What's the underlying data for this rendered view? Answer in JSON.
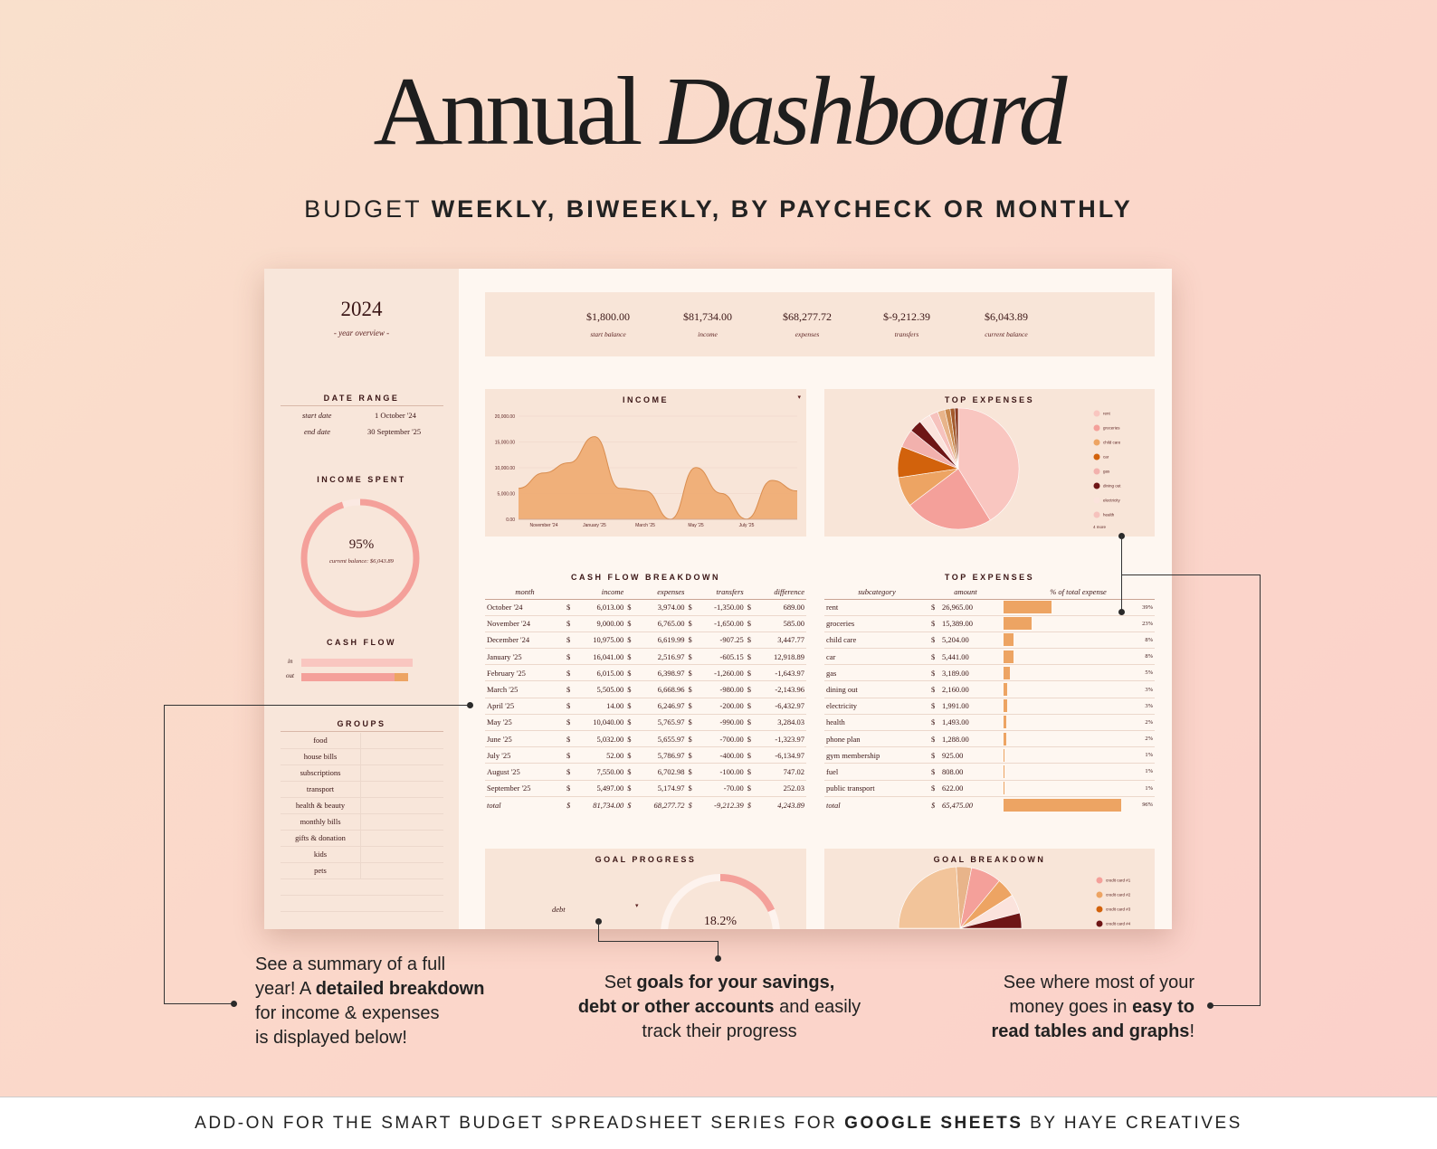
{
  "hero": {
    "title_regular": "Annual",
    "title_italic": "Dashboard"
  },
  "subtitle": {
    "normal": "BUDGET ",
    "bold": "WEEKLY, BIWEEKLY, BY PAYCHECK OR MONTHLY"
  },
  "footer": {
    "pre": "ADD-ON FOR THE SMART BUDGET SPREADSHEET SERIES FOR ",
    "bold": "GOOGLE SHEETS",
    "post": " BY HAYE CREATIVES"
  },
  "sidebar": {
    "year": "2024",
    "year_sub": "- year overview -",
    "date_range_title": "DATE RANGE",
    "start_label": "start date",
    "start_value": "1 October '24",
    "end_label": "end date",
    "end_value": "30 September '25",
    "income_spent_title": "INCOME SPENT",
    "income_spent_pct": "95%",
    "income_spent_fraction": 0.95,
    "income_spent_note": "current balance: $6,043.89",
    "cash_flow_title": "CASH FLOW",
    "cf_in": "in",
    "cf_out": "out",
    "groups_title": "GROUPS",
    "groups": [
      "food",
      "house bills",
      "subscriptions",
      "transport",
      "health & beauty",
      "monthly bills",
      "gifts & donation",
      "kids",
      "pets"
    ]
  },
  "kpis": [
    {
      "value": "$1,800.00",
      "label": "start balance"
    },
    {
      "value": "$81,734.00",
      "label": "income"
    },
    {
      "value": "$68,277.72",
      "label": "expenses"
    },
    {
      "value": "$-9,212.39",
      "label": "transfers"
    },
    {
      "value": "$6,043.89",
      "label": "current balance"
    }
  ],
  "income_chart": {
    "title": "INCOME",
    "dropdown_icon": "caret-down-icon",
    "chart_data": {
      "type": "area",
      "x": [
        "October '24",
        "November '24",
        "December '24",
        "January '25",
        "February '25",
        "March '25",
        "April '25",
        "May '25",
        "June '25",
        "July '25",
        "August '25",
        "September '25"
      ],
      "values": [
        6013,
        9000,
        10975,
        16041,
        6015,
        5505,
        14,
        10040,
        5032,
        52,
        7550,
        5497
      ],
      "yticks": [
        "0.00",
        "5,000.00",
        "10,000.00",
        "15,000.00",
        "20,000.00"
      ],
      "xticks": [
        "November '24",
        "January '25",
        "March '25",
        "May '25",
        "July '25"
      ],
      "ylim": [
        0,
        20000
      ],
      "color": "#eeaa70"
    }
  },
  "top_expenses_pie": {
    "title": "TOP EXPENSES",
    "more": "4 more",
    "chart_data": {
      "type": "pie",
      "labels": [
        "rent",
        "groceries",
        "child care",
        "car",
        "gas",
        "dining out",
        "electricity",
        "health",
        "phone plan",
        "gym membership",
        "fuel",
        "public transport"
      ],
      "values": [
        26965,
        15389,
        5204,
        5441,
        3189,
        2160,
        1991,
        1493,
        1288,
        925,
        808,
        622
      ],
      "colors": [
        "#f9c6c0",
        "#f4a09a",
        "#eda463",
        "#d2620c",
        "#f2b1ad",
        "#6e1616",
        "#fbe3dc",
        "#f6c2bd",
        "#e8b48a",
        "#c9884d",
        "#a45a2c",
        "#8a3a22"
      ]
    }
  },
  "cash_flow": {
    "title": "CASH FLOW BREAKDOWN",
    "headers": [
      "month",
      "income",
      "expenses",
      "transfers",
      "difference"
    ],
    "rows": [
      [
        "October '24",
        "6,013.00",
        "3,974.00",
        "-1,350.00",
        "689.00"
      ],
      [
        "November '24",
        "9,000.00",
        "6,765.00",
        "-1,650.00",
        "585.00"
      ],
      [
        "December '24",
        "10,975.00",
        "6,619.99",
        "-907.25",
        "3,447.77"
      ],
      [
        "January '25",
        "16,041.00",
        "2,516.97",
        "-605.15",
        "12,918.89"
      ],
      [
        "February '25",
        "6,015.00",
        "6,398.97",
        "-1,260.00",
        "-1,643.97"
      ],
      [
        "March '25",
        "5,505.00",
        "6,668.96",
        "-980.00",
        "-2,143.96"
      ],
      [
        "April '25",
        "14.00",
        "6,246.97",
        "-200.00",
        "-6,432.97"
      ],
      [
        "May '25",
        "10,040.00",
        "5,765.97",
        "-990.00",
        "3,284.03"
      ],
      [
        "June '25",
        "5,032.00",
        "5,655.97",
        "-700.00",
        "-1,323.97"
      ],
      [
        "July '25",
        "52.00",
        "5,786.97",
        "-400.00",
        "-6,134.97"
      ],
      [
        "August '25",
        "7,550.00",
        "6,702.98",
        "-100.00",
        "747.02"
      ],
      [
        "September '25",
        "5,497.00",
        "5,174.97",
        "-70.00",
        "252.03"
      ]
    ],
    "total": [
      "total",
      "81,734.00",
      "68,277.72",
      "-9,212.39",
      "4,243.89"
    ],
    "currency": "$"
  },
  "top_expenses_table": {
    "title": "TOP EXPENSES",
    "headers": [
      "subcategory",
      "amount",
      "% of total expense"
    ],
    "rows": [
      [
        "rent",
        "26,965.00",
        "39%",
        0.39
      ],
      [
        "groceries",
        "15,389.00",
        "23%",
        0.23
      ],
      [
        "child care",
        "5,204.00",
        "8%",
        0.08
      ],
      [
        "car",
        "5,441.00",
        "8%",
        0.08
      ],
      [
        "gas",
        "3,189.00",
        "5%",
        0.05
      ],
      [
        "dining out",
        "2,160.00",
        "3%",
        0.03
      ],
      [
        "electricity",
        "1,991.00",
        "3%",
        0.03
      ],
      [
        "health",
        "1,493.00",
        "2%",
        0.02
      ],
      [
        "phone plan",
        "1,288.00",
        "2%",
        0.02
      ],
      [
        "gym membership",
        "925.00",
        "1%",
        0.01
      ],
      [
        "fuel",
        "808.00",
        "1%",
        0.01
      ],
      [
        "public transport",
        "622.00",
        "1%",
        0.01
      ]
    ],
    "total": [
      "total",
      "65,475.00",
      "96%",
      0.96
    ],
    "currency": "$"
  },
  "goal_progress": {
    "title": "GOAL PROGRESS",
    "selector": "debt",
    "pct": "18.2%",
    "fraction": 0.182
  },
  "goal_breakdown": {
    "title": "GOAL BREAKDOWN",
    "legend": [
      "credit card #1",
      "credit card #2",
      "credit card #3",
      "credit card #4"
    ],
    "colors": [
      "#f4a09a",
      "#eda463",
      "#d2620c",
      "#6e1616"
    ]
  },
  "callouts": {
    "left": [
      "See a summary of a full",
      "year! A ",
      "detailed breakdown",
      "for income & expenses",
      "is displayed below!"
    ],
    "middle": [
      "Set ",
      "goals for your savings,",
      "debt or other accounts",
      " and easily",
      "track their progress"
    ],
    "right": [
      "See where most of your",
      "money goes in ",
      "easy to",
      "read tables and graphs",
      "!"
    ]
  }
}
